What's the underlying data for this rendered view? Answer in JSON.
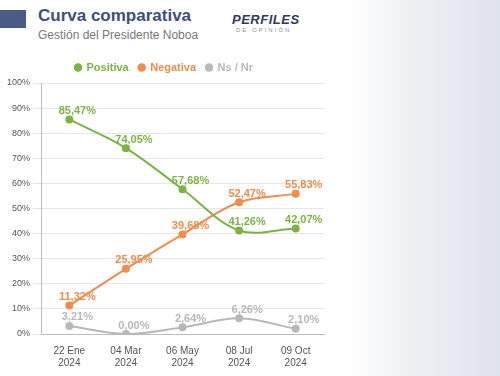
{
  "chart_data": {
    "type": "line",
    "title": "Curva comparativa",
    "subtitle": "Gestión del Presidente Noboa",
    "logo": {
      "name": "PERFILES",
      "tagline": "DE OPINIÓN"
    },
    "categories": [
      "22 Ene 2024",
      "04 Mar 2024",
      "06 May 2024",
      "08 Jul 2024",
      "09 Oct 2024"
    ],
    "series": [
      {
        "name": "Positiva",
        "color": "#7cb342",
        "values": [
          85.47,
          74.05,
          57.68,
          41.26,
          42.07
        ],
        "value_labels": [
          "85,47%",
          "74,05%",
          "57,68%",
          "41,26%",
          "42,07%"
        ]
      },
      {
        "name": "Negativa",
        "color": "#f28c4e",
        "values": [
          11.32,
          25.95,
          39.68,
          52.47,
          55.83
        ],
        "value_labels": [
          "11,32%",
          "25,95%",
          "39,68%",
          "52,47%",
          "55,83%"
        ]
      },
      {
        "name": "Ns / Nr",
        "color": "#b8b8b8",
        "values": [
          3.21,
          0.0,
          2.64,
          6.26,
          2.1
        ],
        "value_labels": [
          "3,21%",
          "0,00%",
          "2,64%",
          "6,26%",
          "2,10%"
        ]
      }
    ],
    "ylim": [
      0,
      100
    ],
    "yticks": [
      {
        "value": 0,
        "label": "0%"
      },
      {
        "value": 10,
        "label": "10%"
      },
      {
        "value": 20,
        "label": "20%"
      },
      {
        "value": 30,
        "label": "30%"
      },
      {
        "value": 40,
        "label": "40%"
      },
      {
        "value": 50,
        "label": "50%"
      },
      {
        "value": 60,
        "label": "60%"
      },
      {
        "value": 70,
        "label": "70%"
      },
      {
        "value": 80,
        "label": "80%"
      },
      {
        "value": 90,
        "label": "90%"
      },
      {
        "value": 100,
        "label": "100%"
      }
    ],
    "grid": true,
    "legend": "top",
    "data_labels": true,
    "marker": "circle"
  }
}
